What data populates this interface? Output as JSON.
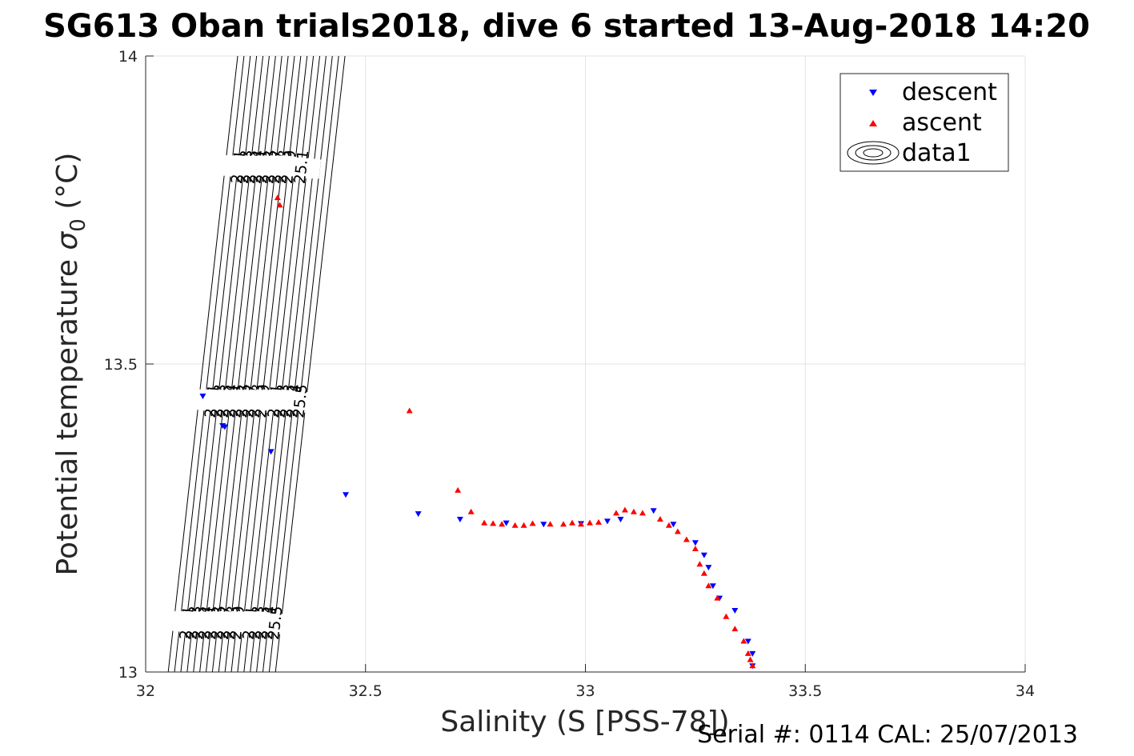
{
  "title": "SG613 Oban trials2018, dive 6 started 13-Aug-2018 14:20",
  "serial_text": "Serial #: 0114  CAL: 25/07/2013",
  "chart_data": {
    "type": "scatter",
    "xlabel": "Salinity (S [PSS-78])",
    "ylabel_main": "Potential temperature ",
    "ylabel_symbol": "σ",
    "ylabel_sub": "0",
    "ylabel_unit": " (°C)",
    "xlim": [
      32,
      34
    ],
    "ylim": [
      13,
      14
    ],
    "x_ticks": [
      "32",
      "32.5",
      "33",
      "33.5",
      "34"
    ],
    "y_ticks": [
      "13",
      "13.5",
      "14"
    ],
    "grid": true,
    "legend_position": "top-right",
    "legend": [
      {
        "label": "descent",
        "marker": "triangle-down",
        "color": "#0000ff"
      },
      {
        "label": "ascent",
        "marker": "triangle-up",
        "color": "#ff0000"
      },
      {
        "label": "data1",
        "marker": "contour",
        "color": "#000000"
      }
    ],
    "isopycnals": {
      "levels": [
        23.9,
        24.0,
        24.1,
        24.2,
        24.3,
        24.4,
        24.5,
        24.6,
        24.7,
        24.8,
        24.9,
        25.0,
        25.1,
        25.2,
        25.3,
        25.4,
        25.5,
        25.6
      ],
      "labels_top": [
        "24",
        "24.1",
        "24.2",
        "24.3",
        "24.4",
        "24.5",
        "24.6",
        "24.7",
        "24.8",
        "24.9",
        "25",
        "25.1"
      ],
      "labels_mid": [
        "24",
        "24.1",
        "24.2",
        "24.3",
        "24.4",
        "24.5",
        "24.6",
        "24.7",
        "24.8",
        "24.9",
        "25",
        "25.1",
        "25.2",
        "25.3",
        "25.4",
        "25.5"
      ],
      "labels_bottom": [
        "24.1",
        "24.2",
        "24.3",
        "24.4",
        "24.5",
        "24.6",
        "24.7",
        "24.8",
        "24.9",
        "25",
        "25.1",
        "25.2",
        "25.3",
        "25.4",
        "25.5"
      ],
      "dS_dT": 0.158
    },
    "series": [
      {
        "name": "descent",
        "color": "#0000ff",
        "x": [
          32.13,
          32.175,
          32.18,
          32.285,
          32.455,
          32.62,
          32.715,
          32.82,
          32.905,
          32.99,
          33.05,
          33.08,
          33.155,
          33.2,
          33.25,
          33.27,
          33.28,
          33.29,
          33.305,
          33.34,
          33.37,
          33.38,
          33.38
        ],
        "y": [
          13.448,
          13.4,
          13.398,
          13.358,
          13.288,
          13.257,
          13.248,
          13.242,
          13.24,
          13.241,
          13.245,
          13.248,
          13.262,
          13.24,
          13.21,
          13.19,
          13.17,
          13.14,
          13.12,
          13.1,
          13.05,
          13.03,
          13.01
        ]
      },
      {
        "name": "ascent",
        "color": "#ff0000",
        "x": [
          32.3,
          32.305,
          32.6,
          32.71,
          32.74,
          32.77,
          32.79,
          32.81,
          32.84,
          32.86,
          32.88,
          32.92,
          32.95,
          32.97,
          32.99,
          33.01,
          33.03,
          33.07,
          33.09,
          33.11,
          33.13,
          33.17,
          33.19,
          33.21,
          33.23,
          33.25,
          33.26,
          33.27,
          33.28,
          33.3,
          33.32,
          33.34,
          33.36,
          33.37,
          33.375,
          33.38
        ],
        "y": [
          13.77,
          13.758,
          13.424,
          13.295,
          13.26,
          13.242,
          13.241,
          13.24,
          13.238,
          13.238,
          13.241,
          13.24,
          13.24,
          13.242,
          13.24,
          13.242,
          13.243,
          13.258,
          13.263,
          13.26,
          13.258,
          13.248,
          13.238,
          13.228,
          13.215,
          13.2,
          13.175,
          13.16,
          13.14,
          13.12,
          13.09,
          13.07,
          13.05,
          13.03,
          13.02,
          13.01
        ]
      }
    ]
  }
}
